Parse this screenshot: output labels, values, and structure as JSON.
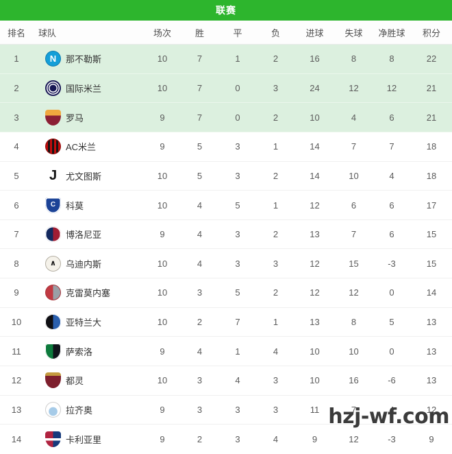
{
  "header": {
    "title": "联赛"
  },
  "colors": {
    "accent_green": "#2db52d",
    "highlight_row_green": "#dcf0df",
    "watermark_text": "#3b3b3b"
  },
  "table": {
    "columns": [
      "排名",
      "球队",
      "场次",
      "胜",
      "平",
      "负",
      "进球",
      "失球",
      "净胜球",
      "积分"
    ],
    "highlight_top_n": 3,
    "rows": [
      {
        "rank": "1",
        "team": "那不勒斯",
        "logo": "napoli",
        "played": "10",
        "win": "7",
        "draw": "1",
        "loss": "2",
        "gf": "16",
        "ga": "8",
        "gd": "8",
        "pts": "22"
      },
      {
        "rank": "2",
        "team": "国际米兰",
        "logo": "inter",
        "played": "10",
        "win": "7",
        "draw": "0",
        "loss": "3",
        "gf": "24",
        "ga": "12",
        "gd": "12",
        "pts": "21"
      },
      {
        "rank": "3",
        "team": "罗马",
        "logo": "roma",
        "played": "9",
        "win": "7",
        "draw": "0",
        "loss": "2",
        "gf": "10",
        "ga": "4",
        "gd": "6",
        "pts": "21"
      },
      {
        "rank": "4",
        "team": "AC米兰",
        "logo": "milan",
        "played": "9",
        "win": "5",
        "draw": "3",
        "loss": "1",
        "gf": "14",
        "ga": "7",
        "gd": "7",
        "pts": "18"
      },
      {
        "rank": "5",
        "team": "尤文图斯",
        "logo": "juve",
        "played": "10",
        "win": "5",
        "draw": "3",
        "loss": "2",
        "gf": "14",
        "ga": "10",
        "gd": "4",
        "pts": "18"
      },
      {
        "rank": "6",
        "team": "科莫",
        "logo": "como",
        "played": "10",
        "win": "4",
        "draw": "5",
        "loss": "1",
        "gf": "12",
        "ga": "6",
        "gd": "6",
        "pts": "17"
      },
      {
        "rank": "7",
        "team": "博洛尼亚",
        "logo": "bologna",
        "played": "9",
        "win": "4",
        "draw": "3",
        "loss": "2",
        "gf": "13",
        "ga": "7",
        "gd": "6",
        "pts": "15"
      },
      {
        "rank": "8",
        "team": "乌迪内斯",
        "logo": "udinese",
        "played": "10",
        "win": "4",
        "draw": "3",
        "loss": "3",
        "gf": "12",
        "ga": "15",
        "gd": "-3",
        "pts": "15"
      },
      {
        "rank": "9",
        "team": "克雷莫内塞",
        "logo": "cremonese",
        "played": "10",
        "win": "3",
        "draw": "5",
        "loss": "2",
        "gf": "12",
        "ga": "12",
        "gd": "0",
        "pts": "14"
      },
      {
        "rank": "10",
        "team": "亚特兰大",
        "logo": "atalanta",
        "played": "10",
        "win": "2",
        "draw": "7",
        "loss": "1",
        "gf": "13",
        "ga": "8",
        "gd": "5",
        "pts": "13"
      },
      {
        "rank": "11",
        "team": "萨索洛",
        "logo": "sassuolo",
        "played": "9",
        "win": "4",
        "draw": "1",
        "loss": "4",
        "gf": "10",
        "ga": "10",
        "gd": "0",
        "pts": "13"
      },
      {
        "rank": "12",
        "team": "都灵",
        "logo": "torino",
        "played": "10",
        "win": "3",
        "draw": "4",
        "loss": "3",
        "gf": "10",
        "ga": "16",
        "gd": "-6",
        "pts": "13"
      },
      {
        "rank": "13",
        "team": "拉齐奥",
        "logo": "lazio",
        "played": "9",
        "win": "3",
        "draw": "3",
        "loss": "3",
        "gf": "11",
        "ga": "7",
        "gd": "4",
        "pts": "12"
      },
      {
        "rank": "14",
        "team": "卡利亚里",
        "logo": "cagliari",
        "played": "9",
        "win": "2",
        "draw": "3",
        "loss": "4",
        "gf": "9",
        "ga": "12",
        "gd": "-3",
        "pts": "9"
      }
    ]
  },
  "watermark": {
    "text": "hzj-wf.com"
  }
}
